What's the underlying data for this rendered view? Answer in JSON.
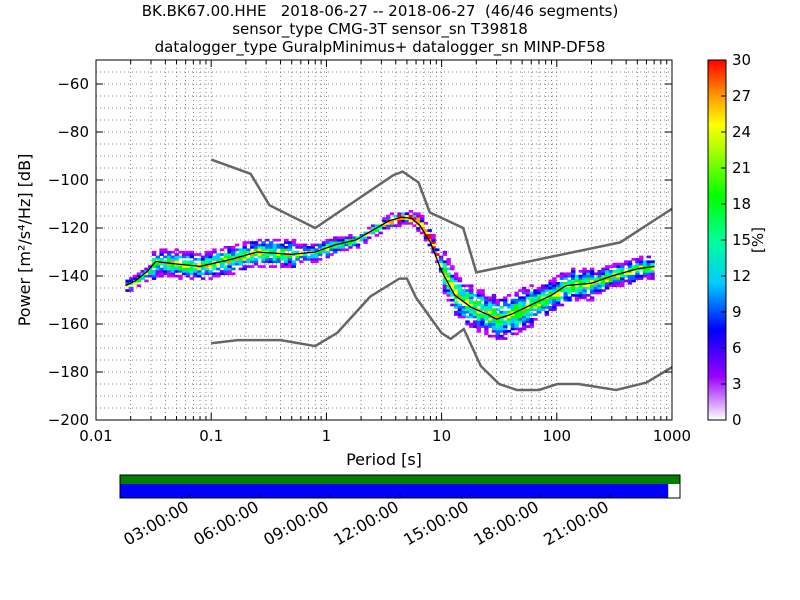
{
  "title_lines": [
    "BK.BK67.00.HHE   2018-06-27 -- 2018-06-27  (46/46 segments)",
    "sensor_type CMG-3T sensor_sn T39818",
    "datalogger_type GuralpMinimus+ datalogger_sn MINP-DF58"
  ],
  "chart_data": {
    "type": "heatmap",
    "xlabel": "Period [s]",
    "ylabel": "Power [m²/s⁴/Hz] [dB]",
    "x_scale": "log",
    "xlim": [
      0.01,
      1000
    ],
    "ylim": [
      -200,
      -50
    ],
    "x_ticks": [
      0.01,
      0.1,
      1,
      10,
      100,
      1000
    ],
    "x_tick_labels": [
      "0.01",
      "0.1",
      "1",
      "10",
      "100",
      "1000"
    ],
    "y_ticks": [
      -200,
      -180,
      -160,
      -140,
      -120,
      -100,
      -80,
      -60
    ],
    "y_tick_labels": [
      "−200",
      "−180",
      "−160",
      "−140",
      "−120",
      "−100",
      "−80",
      "−60"
    ],
    "grid": true,
    "colorbar": {
      "label": "[%]",
      "min": 0,
      "max": 30,
      "ticks": [
        0,
        3,
        6,
        9,
        12,
        15,
        18,
        21,
        24,
        27,
        30
      ]
    },
    "noise_models": [
      {
        "name": "NHNM",
        "color": "#666666",
        "points": [
          [
            0.1,
            -91.5
          ],
          [
            0.22,
            -97.4
          ],
          [
            0.32,
            -110.5
          ],
          [
            0.8,
            -120
          ],
          [
            3.8,
            -98
          ],
          [
            4.6,
            -96.5
          ],
          [
            6.3,
            -101
          ],
          [
            7.9,
            -113.5
          ],
          [
            15.4,
            -120
          ],
          [
            20,
            -138.5
          ],
          [
            354.8,
            -126
          ],
          [
            1000,
            -112
          ]
        ]
      },
      {
        "name": "NLNM",
        "color": "#666666",
        "points": [
          [
            0.1,
            -168
          ],
          [
            0.17,
            -166.7
          ],
          [
            0.4,
            -166.7
          ],
          [
            0.8,
            -169.2
          ],
          [
            1.24,
            -163.7
          ],
          [
            2.4,
            -148.6
          ],
          [
            4.3,
            -141.1
          ],
          [
            5,
            -141.1
          ],
          [
            6,
            -149
          ],
          [
            10,
            -163.8
          ],
          [
            12,
            -166.2
          ],
          [
            15.6,
            -162.1
          ],
          [
            21.9,
            -177.5
          ],
          [
            31.6,
            -185
          ],
          [
            45,
            -187.5
          ],
          [
            70,
            -187.5
          ],
          [
            101,
            -185
          ],
          [
            154,
            -185
          ],
          [
            328,
            -187.5
          ],
          [
            600,
            -184.4
          ],
          [
            1000,
            -178
          ]
        ]
      }
    ],
    "mode_curve": {
      "name": "mode",
      "color": "#000000",
      "points": [
        [
          0.018,
          -144
        ],
        [
          0.022,
          -142
        ],
        [
          0.028,
          -138
        ],
        [
          0.033,
          -134
        ],
        [
          0.05,
          -135
        ],
        [
          0.08,
          -136
        ],
        [
          0.15,
          -133
        ],
        [
          0.25,
          -130
        ],
        [
          0.5,
          -131
        ],
        [
          0.8,
          -130
        ],
        [
          1.2,
          -127
        ],
        [
          1.8,
          -125
        ],
        [
          2.5,
          -121
        ],
        [
          3.5,
          -117
        ],
        [
          4.5,
          -115.5
        ],
        [
          5.5,
          -116
        ],
        [
          6.5,
          -119
        ],
        [
          8,
          -126
        ],
        [
          10,
          -138
        ],
        [
          13,
          -148
        ],
        [
          18,
          -153
        ],
        [
          25,
          -156
        ],
        [
          30,
          -158
        ],
        [
          40,
          -156
        ],
        [
          60,
          -152
        ],
        [
          90,
          -148
        ],
        [
          120,
          -144
        ],
        [
          200,
          -143
        ],
        [
          300,
          -140
        ],
        [
          500,
          -137
        ],
        [
          700,
          -136
        ]
      ]
    },
    "data_coverage": {
      "time_ticks": [
        "03:00:00",
        "06:00:00",
        "09:00:00",
        "12:00:00",
        "15:00:00",
        "18:00:00",
        "21:00:00"
      ],
      "green_bar_color": "#008000",
      "blue_bar_color": "#0000ff",
      "green_coverage_fraction": 1.0,
      "blue_coverage_fraction": 0.979
    }
  }
}
